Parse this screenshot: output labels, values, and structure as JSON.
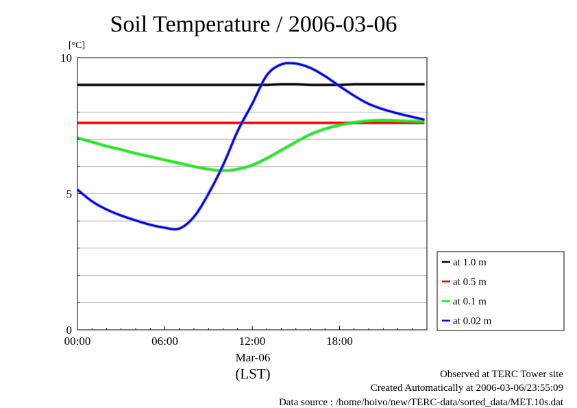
{
  "chart_data": {
    "type": "line",
    "title": "Soil Temperature / 2006-03-06",
    "ylabel": "[°C]",
    "xlabel": "(LST)",
    "x_date_label": "Mar-06",
    "x_range": [
      "2006-03-06 00:00",
      "2006-03-06 23:50"
    ],
    "ylim": [
      0,
      10
    ],
    "x_ticks": [
      "00:00",
      "06:00",
      "12:00",
      "18:00"
    ],
    "y_ticks": [
      0,
      5,
      10
    ],
    "grid": true,
    "legend_position": "bottom-right, outside plot",
    "x": [
      "00:00",
      "01:00",
      "02:00",
      "03:00",
      "04:00",
      "05:00",
      "06:00",
      "07:00",
      "08:00",
      "09:00",
      "10:00",
      "11:00",
      "12:00",
      "13:00",
      "14:00",
      "15:00",
      "16:00",
      "17:00",
      "18:00",
      "19:00",
      "20:00",
      "21:00",
      "22:00",
      "23:00",
      "23:50"
    ],
    "series": [
      {
        "name": "at 1.0 m",
        "color": "#000000",
        "values": [
          9.0,
          9.0,
          9.0,
          9.0,
          9.0,
          9.0,
          9.0,
          9.0,
          9.0,
          9.0,
          9.0,
          9.0,
          9.0,
          9.0,
          9.02,
          9.02,
          9.0,
          9.0,
          9.0,
          9.02,
          9.02,
          9.02,
          9.02,
          9.02,
          9.02
        ]
      },
      {
        "name": "at 0.5 m",
        "color": "#ff0000",
        "values": [
          7.6,
          7.6,
          7.6,
          7.6,
          7.6,
          7.6,
          7.6,
          7.6,
          7.6,
          7.6,
          7.6,
          7.6,
          7.6,
          7.6,
          7.6,
          7.6,
          7.6,
          7.6,
          7.6,
          7.6,
          7.6,
          7.6,
          7.6,
          7.6,
          7.6
        ]
      },
      {
        "name": "at 0.1 m",
        "color": "#00ff00",
        "values": [
          7.05,
          6.9,
          6.75,
          6.62,
          6.48,
          6.36,
          6.24,
          6.12,
          6.0,
          5.9,
          5.85,
          5.9,
          6.05,
          6.3,
          6.6,
          6.9,
          7.18,
          7.38,
          7.52,
          7.62,
          7.68,
          7.7,
          7.68,
          7.66,
          7.65
        ]
      },
      {
        "name": "at 0.02 m",
        "color": "#0000ff",
        "values": [
          5.15,
          4.72,
          4.42,
          4.2,
          4.02,
          3.86,
          3.75,
          3.72,
          4.15,
          5.0,
          6.05,
          7.3,
          8.3,
          9.35,
          9.75,
          9.78,
          9.62,
          9.32,
          8.95,
          8.6,
          8.3,
          8.1,
          7.95,
          7.82,
          7.72
        ]
      }
    ]
  },
  "footer": {
    "observed": "Observed at TERC Tower site",
    "created": "Created Automatically at 2006-03-06/23:55:09",
    "source": "Data source : /home/hoivo/new/TERC-data/sorted_data/MET.10s.dat"
  }
}
